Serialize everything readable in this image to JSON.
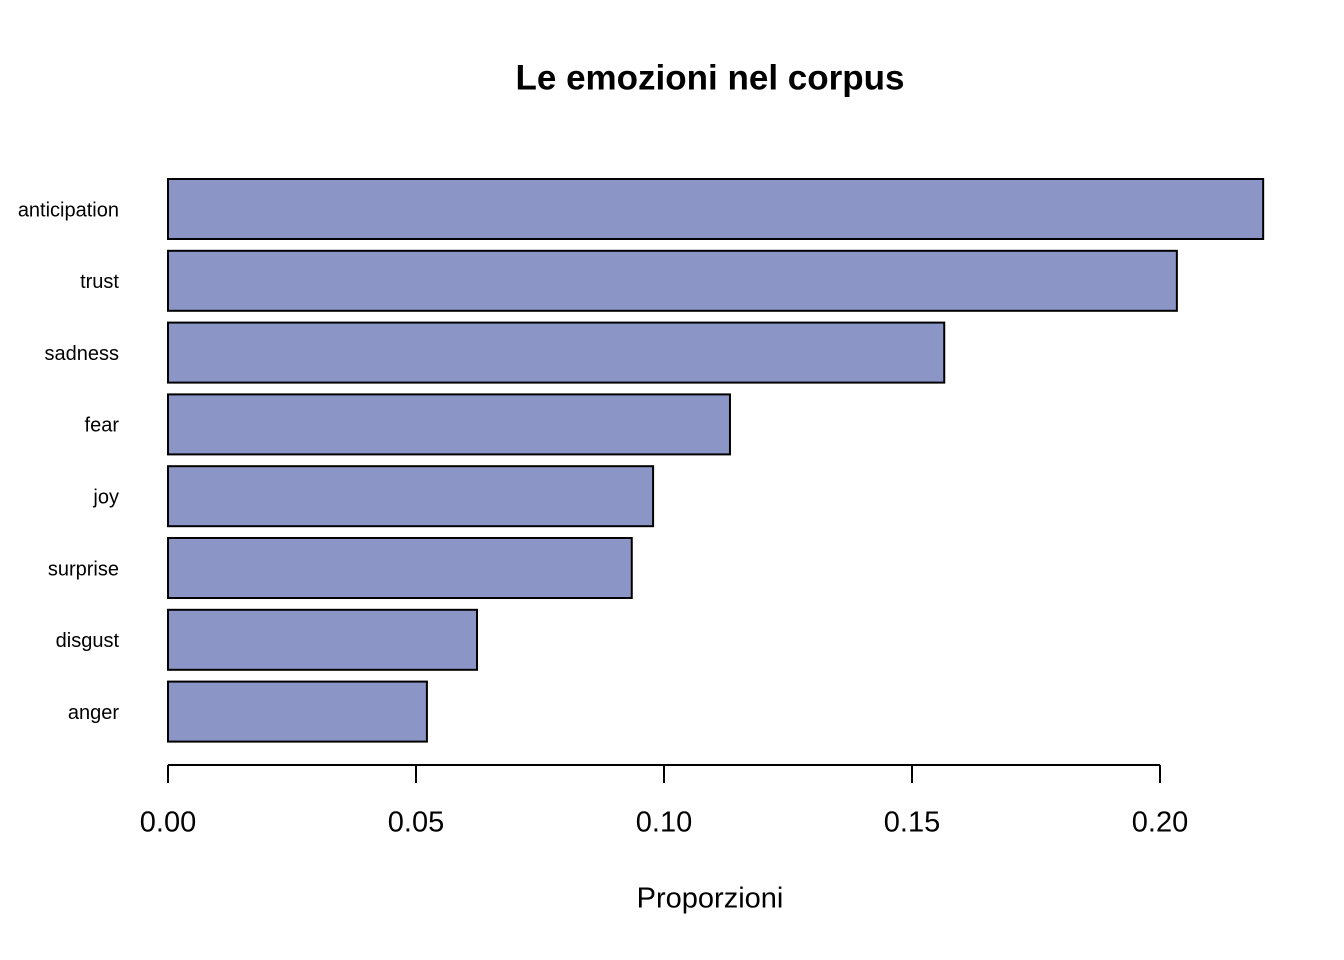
{
  "chart_data": {
    "type": "bar",
    "orientation": "horizontal",
    "title": "Le emozioni nel corpus",
    "x_label": "Proporzioni",
    "categories": [
      "anticipation",
      "trust",
      "sadness",
      "fear",
      "joy",
      "surprise",
      "disgust",
      "anger"
    ],
    "values": [
      0.2208,
      0.2034,
      0.1565,
      0.1133,
      0.0978,
      0.0935,
      0.0623,
      0.0522
    ],
    "color": "#8b96c6",
    "xlim": [
      0,
      0.22
    ],
    "xticks": [
      {
        "value": 0,
        "label": "0.00"
      },
      0.05,
      {
        "value": 0.1,
        "label": "0.10"
      },
      0.15,
      {
        "value": 0.2,
        "label": "0.20"
      }
    ]
  }
}
